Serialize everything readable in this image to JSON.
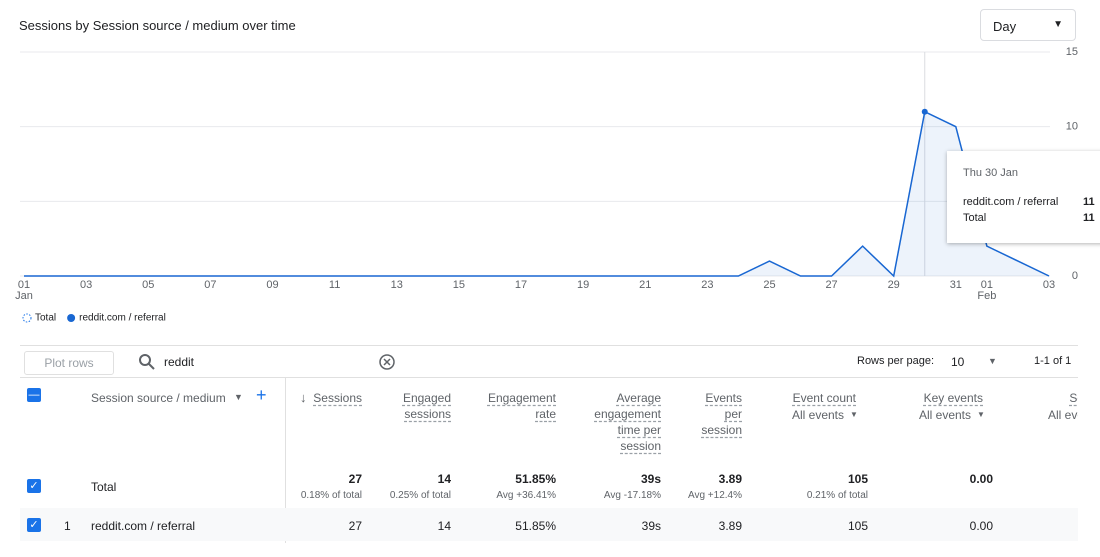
{
  "header": {
    "title": "Sessions by Session source / medium over time",
    "granularity": "Day"
  },
  "chart_data": {
    "type": "line",
    "categories": [
      "01",
      null,
      "03",
      null,
      "05",
      null,
      "07",
      null,
      "09",
      null,
      "11",
      null,
      "13",
      null,
      "15",
      null,
      "17",
      null,
      "19",
      null,
      "21",
      null,
      "23",
      null,
      "25",
      null,
      "27",
      null,
      "29",
      null,
      "31",
      "01",
      null,
      "03"
    ],
    "month_labels": [
      {
        "category": 0,
        "label": "Jan"
      },
      {
        "category": 31,
        "label": "Feb"
      }
    ],
    "series": [
      {
        "name": "Total",
        "color": "#1a73e8",
        "values": [
          0,
          0,
          0,
          0,
          0,
          0,
          0,
          0,
          0,
          0,
          0,
          0,
          0,
          0,
          0,
          0,
          0,
          0,
          0,
          0,
          0,
          0,
          0,
          0,
          1,
          0,
          0,
          2,
          0,
          11,
          10,
          2,
          1,
          0
        ]
      },
      {
        "name": "reddit.com / referral",
        "color": "#1967d2",
        "values": [
          0,
          0,
          0,
          0,
          0,
          0,
          0,
          0,
          0,
          0,
          0,
          0,
          0,
          0,
          0,
          0,
          0,
          0,
          0,
          0,
          0,
          0,
          0,
          0,
          1,
          0,
          0,
          2,
          0,
          11,
          10,
          2,
          1,
          0
        ]
      }
    ],
    "ylim": [
      0,
      15
    ],
    "yticks": [
      0,
      5,
      10,
      15
    ],
    "grid": true,
    "tooltip": {
      "title": "Thu 30 Jan",
      "category": 29,
      "rows": [
        {
          "name": "reddit.com / referral",
          "value": 11
        },
        {
          "name": "Total",
          "value": 11
        }
      ]
    }
  },
  "toolbar": {
    "plot_rows": "Plot rows",
    "search": "reddit",
    "rows_per_page_label": "Rows per page:",
    "rows_per_page": 10,
    "pagination": "1-1 of 1"
  },
  "table": {
    "dimension": "Session source / medium",
    "columns": [
      {
        "label": "Sessions"
      },
      {
        "label": "Engaged sessions"
      },
      {
        "label": "Engagement rate"
      },
      {
        "label": "Average engagement time per session"
      },
      {
        "label": "Events per session"
      },
      {
        "label": "Event count",
        "filter": "All events"
      },
      {
        "label": "Key events",
        "filter": "All events"
      },
      {
        "label": "Ses e",
        "filter": "All ever"
      }
    ],
    "total": {
      "label": "Total",
      "values": [
        27,
        14,
        "51.85%",
        "39s",
        3.89,
        105,
        "0.00"
      ],
      "notes": [
        "0.18% of total",
        "0.25% of total",
        "Avg +36.41%",
        "Avg -17.18%",
        "Avg +12.4%",
        "0.21% of total"
      ]
    },
    "rows": [
      {
        "index": 1,
        "dimension": "reddit.com / referral",
        "values": [
          27,
          14,
          "51.85%",
          "39s",
          3.89,
          105,
          "0.00"
        ]
      }
    ]
  }
}
